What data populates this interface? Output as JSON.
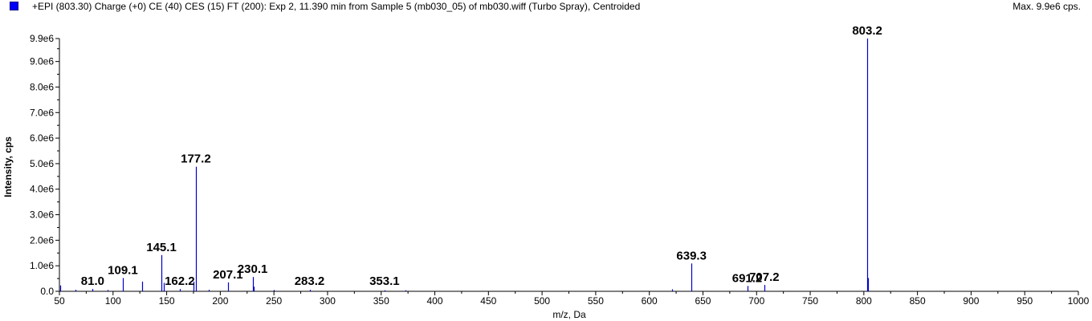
{
  "header": {
    "title": "+EPI (803.30) Charge (+0) CE (40) CES (15) FT (200): Exp 2, 11.390 min from Sample 5 (mb030_05) of mb030.wiff (Turbo Spray), Centroided",
    "max_label": "Max. 9.9e6 cps."
  },
  "colors": {
    "series": "#0000cc",
    "legend": "#0000ff",
    "axis": "#000000"
  },
  "chart_data": {
    "type": "bar",
    "title": "+EPI (803.30) Charge (+0) CE (40) CES (15) FT (200): Exp 2, 11.390 min from Sample 5 (mb030_05) of mb030.wiff (Turbo Spray), Centroided",
    "xlabel": "m/z, Da",
    "ylabel": "Intensity, cps",
    "xlim": [
      50,
      1000
    ],
    "ylim": [
      0,
      9900000.0
    ],
    "x_ticks": [
      {
        "value": 50,
        "label": "50"
      },
      {
        "value": 100,
        "label": "100"
      },
      {
        "value": 150,
        "label": "150"
      },
      {
        "value": 200,
        "label": "200"
      },
      {
        "value": 250,
        "label": "250"
      },
      {
        "value": 300,
        "label": "300"
      },
      {
        "value": 350,
        "label": "350"
      },
      {
        "value": 400,
        "label": "400"
      },
      {
        "value": 450,
        "label": "450"
      },
      {
        "value": 500,
        "label": "500"
      },
      {
        "value": 550,
        "label": "550"
      },
      {
        "value": 600,
        "label": "600"
      },
      {
        "value": 650,
        "label": "650"
      },
      {
        "value": 700,
        "label": "700"
      },
      {
        "value": 750,
        "label": "750"
      },
      {
        "value": 800,
        "label": "800"
      },
      {
        "value": 850,
        "label": "850"
      },
      {
        "value": 900,
        "label": "900"
      },
      {
        "value": 950,
        "label": "950"
      },
      {
        "value": 1000,
        "label": "1000"
      }
    ],
    "y_ticks": [
      {
        "value": 0,
        "label": "0.0"
      },
      {
        "value": 1000000,
        "label": "1.0e6"
      },
      {
        "value": 2000000,
        "label": "2.0e6"
      },
      {
        "value": 3000000,
        "label": "3.0e6"
      },
      {
        "value": 4000000,
        "label": "4.0e6"
      },
      {
        "value": 5000000,
        "label": "5.0e6"
      },
      {
        "value": 6000000,
        "label": "6.0e6"
      },
      {
        "value": 7000000,
        "label": "7.0e6"
      },
      {
        "value": 8000000,
        "label": "8.0e6"
      },
      {
        "value": 9000000,
        "label": "9.0e6"
      },
      {
        "value": 9900000,
        "label": "9.9e6"
      }
    ],
    "peaks": [
      {
        "x": 51,
        "y": 230000
      },
      {
        "x": 65,
        "y": 60000
      },
      {
        "x": 81.0,
        "y": 90000,
        "label": "81.0"
      },
      {
        "x": 95,
        "y": 50000
      },
      {
        "x": 109.1,
        "y": 520000,
        "label": "109.1"
      },
      {
        "x": 127,
        "y": 380000
      },
      {
        "x": 145.1,
        "y": 1420000,
        "label": "145.1"
      },
      {
        "x": 147,
        "y": 330000
      },
      {
        "x": 162.2,
        "y": 90000,
        "label": "162.2"
      },
      {
        "x": 175,
        "y": 380000
      },
      {
        "x": 177.2,
        "y": 4880000,
        "label": "177.2"
      },
      {
        "x": 189,
        "y": 60000
      },
      {
        "x": 207.1,
        "y": 350000,
        "label": "207.1"
      },
      {
        "x": 230.1,
        "y": 560000,
        "label": "230.1"
      },
      {
        "x": 231,
        "y": 180000
      },
      {
        "x": 250,
        "y": 50000
      },
      {
        "x": 283.2,
        "y": 60000,
        "label": "283.2"
      },
      {
        "x": 353.1,
        "y": 40000,
        "label": "353.1"
      },
      {
        "x": 373,
        "y": 40000
      },
      {
        "x": 621,
        "y": 80000
      },
      {
        "x": 639.3,
        "y": 1090000,
        "label": "639.3"
      },
      {
        "x": 691.2,
        "y": 210000,
        "label": "691.2"
      },
      {
        "x": 707.2,
        "y": 250000,
        "label": "707.2"
      },
      {
        "x": 803.2,
        "y": 9900000,
        "label": "803.2"
      },
      {
        "x": 804.2,
        "y": 520000
      }
    ]
  }
}
